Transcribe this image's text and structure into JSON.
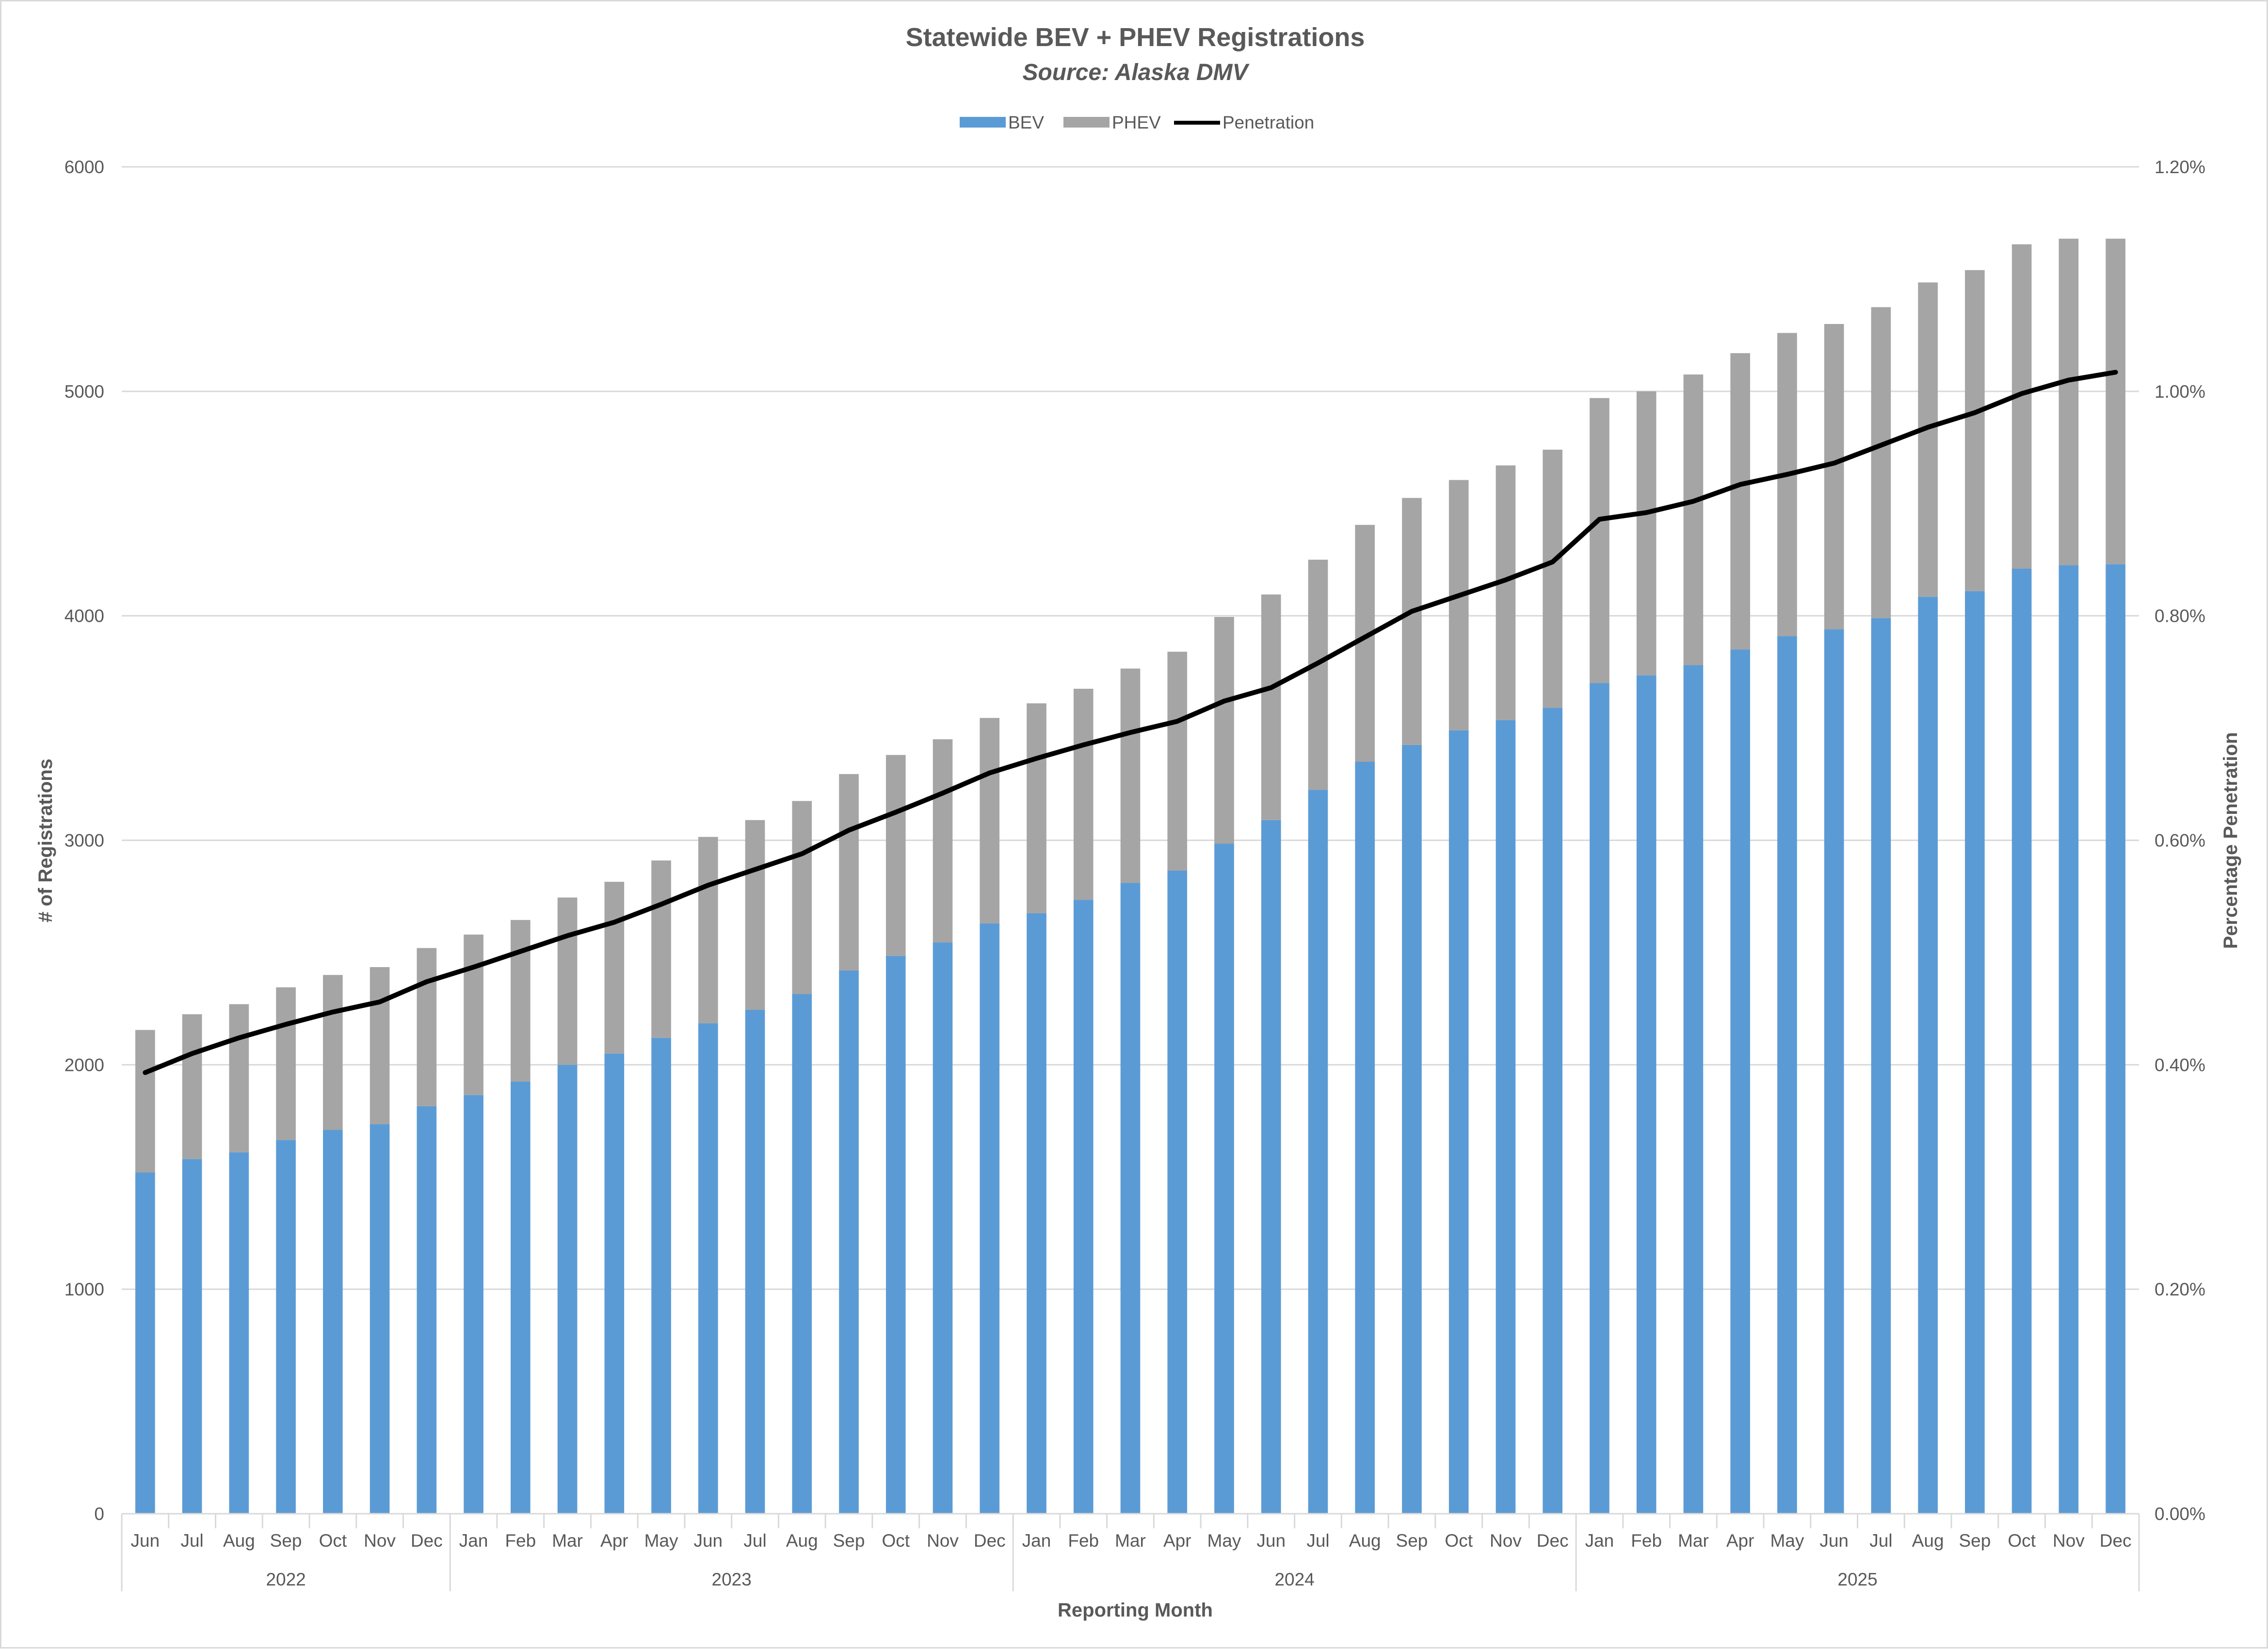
{
  "chart_data": {
    "type": "bar",
    "stacked": true,
    "title": "Statewide BEV + PHEV Registrations",
    "subtitle": "Source: Alaska DMV",
    "xlabel": "Reporting Month",
    "ylabel": "# of Registrations",
    "y2label": "Percentage Penetration",
    "ylim": [
      0,
      6000
    ],
    "y_ticks": [
      "0",
      "1000",
      "2000",
      "3000",
      "4000",
      "5000",
      "6000"
    ],
    "y2lim": [
      0,
      1.2
    ],
    "y2_ticks": [
      "0.00%",
      "0.20%",
      "0.40%",
      "0.60%",
      "0.80%",
      "1.00%",
      "1.20%"
    ],
    "grid": true,
    "legend_position": "top",
    "categories": [
      "Jun",
      "Jul",
      "Aug",
      "Sep",
      "Oct",
      "Nov",
      "Dec",
      "Jan",
      "Feb",
      "Mar",
      "Apr",
      "May",
      "Jun",
      "Jul",
      "Aug",
      "Sep",
      "Oct",
      "Nov",
      "Dec",
      "Jan",
      "Feb",
      "Mar",
      "Apr",
      "May",
      "Jun",
      "Jul",
      "Aug",
      "Sep",
      "Oct",
      "Nov",
      "Dec",
      "Jan",
      "Feb",
      "Mar",
      "Apr",
      "May",
      "Jun",
      "Jul",
      "Aug",
      "Sep",
      "Oct",
      "Nov",
      "Dec"
    ],
    "year_groups": [
      {
        "label": "2022",
        "count": 7
      },
      {
        "label": "2023",
        "count": 12
      },
      {
        "label": "2024",
        "count": 12
      },
      {
        "label": "2025",
        "count": 12
      }
    ],
    "series": [
      {
        "name": "BEV",
        "type": "bar",
        "color": "#5b9bd5",
        "values": [
          1520,
          1580,
          1610,
          1665,
          1710,
          1735,
          1815,
          1865,
          1925,
          2000,
          2050,
          2120,
          2185,
          2245,
          2315,
          2420,
          2485,
          2545,
          2630,
          2675,
          2735,
          2810,
          2865,
          2985,
          3090,
          3225,
          3350,
          3425,
          3490,
          3535,
          3590,
          3700,
          3735,
          3780,
          3850,
          3910,
          3940,
          3990,
          4085,
          4110,
          4210,
          4225,
          4230
        ]
      },
      {
        "name": "PHEV",
        "type": "bar",
        "color": "#a5a5a5",
        "values": [
          635,
          645,
          660,
          680,
          690,
          700,
          705,
          715,
          720,
          745,
          765,
          790,
          830,
          845,
          860,
          875,
          895,
          905,
          915,
          935,
          940,
          955,
          975,
          1010,
          1005,
          1025,
          1055,
          1100,
          1115,
          1135,
          1150,
          1270,
          1265,
          1295,
          1320,
          1350,
          1360,
          1385,
          1400,
          1430,
          1445,
          1455,
          1450
        ]
      },
      {
        "name": "Penetration",
        "type": "line",
        "color": "#000000",
        "axis": "secondary",
        "values": [
          0.393,
          0.41,
          0.424,
          0.436,
          0.447,
          0.456,
          0.474,
          0.487,
          0.501,
          0.515,
          0.527,
          0.543,
          0.56,
          0.574,
          0.588,
          0.609,
          0.625,
          0.642,
          0.66,
          0.673,
          0.685,
          0.696,
          0.706,
          0.724,
          0.736,
          0.758,
          0.781,
          0.804,
          0.818,
          0.832,
          0.848,
          0.886,
          0.892,
          0.902,
          0.917,
          0.926,
          0.936,
          0.952,
          0.968,
          0.981,
          0.998,
          1.01,
          1.017
        ]
      }
    ]
  }
}
